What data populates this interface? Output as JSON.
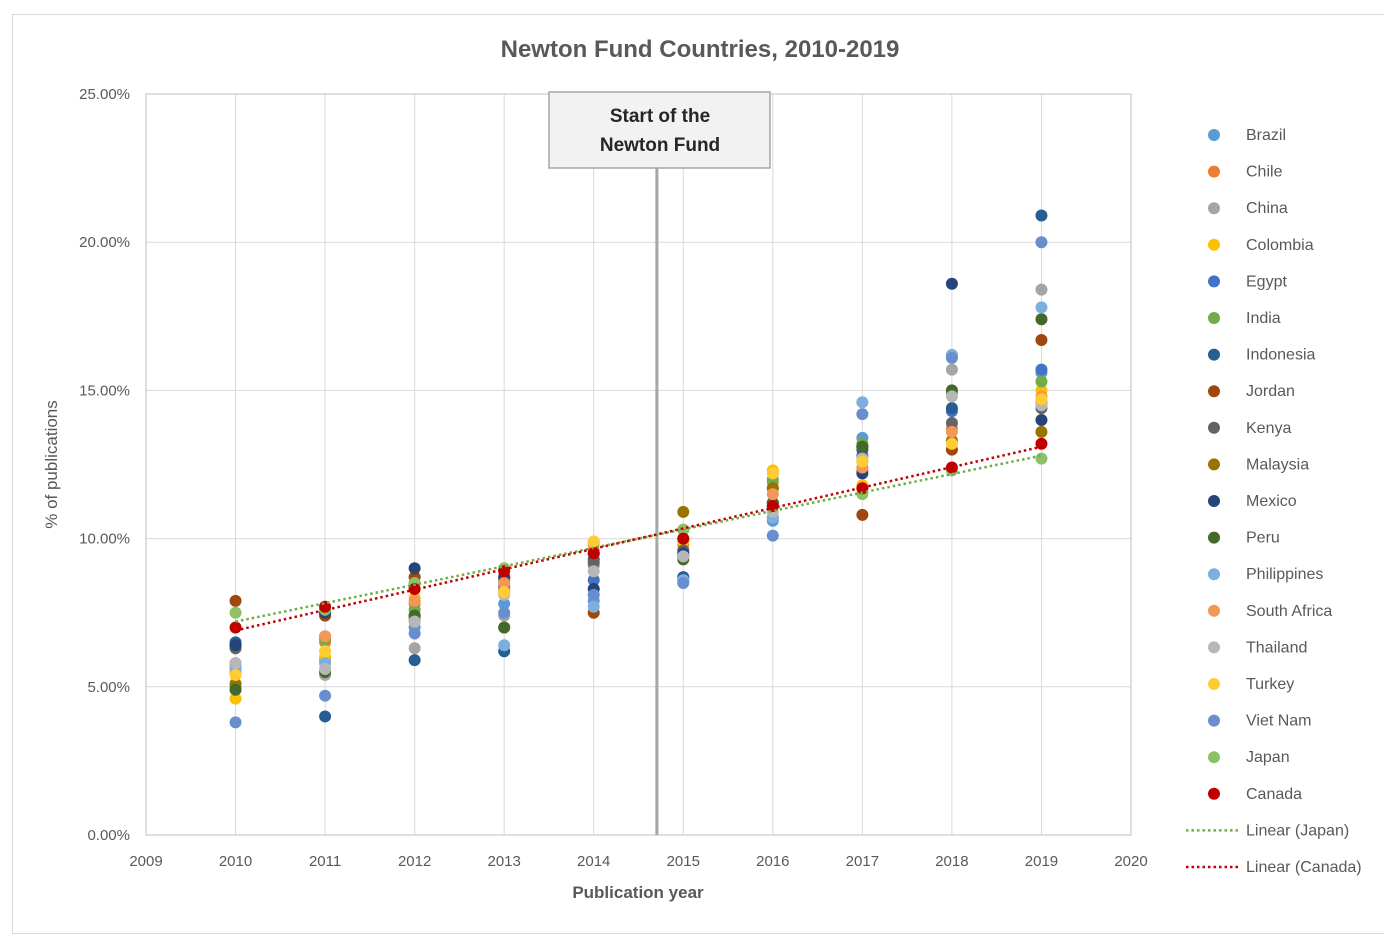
{
  "chart_data": {
    "type": "scatter",
    "title": "Newton Fund Countries, 2010-2019",
    "xlabel": "Publication year",
    "ylabel": "% of publications",
    "xlim": [
      2009,
      2020
    ],
    "ylim": [
      0,
      25
    ],
    "x_ticks": [
      "2009",
      "2010",
      "2011",
      "2012",
      "2013",
      "2014",
      "2015",
      "2016",
      "2017",
      "2018",
      "2019",
      "2020"
    ],
    "y_ticks": [
      "0.00%",
      "5.00%",
      "10.00%",
      "15.00%",
      "20.00%",
      "25.00%"
    ],
    "grid": "horizontal and vertical",
    "legend_position": "right",
    "annotation": {
      "text": [
        "Start of the",
        "Newton Fund"
      ],
      "x": 2014.75
    },
    "x": [
      2010,
      2011,
      2012,
      2013,
      2014,
      2015,
      2016,
      2017,
      2018,
      2019
    ],
    "series": [
      {
        "name": "Brazil",
        "color": "#5b9bd5",
        "values": [
          5.7,
          5.9,
          7.0,
          7.8,
          7.9,
          8.6,
          10.6,
          13.4,
          16.1,
          15.6
        ]
      },
      {
        "name": "Chile",
        "color": "#ed7d31",
        "values": [
          5.5,
          6.5,
          7.8,
          8.3,
          9.6,
          9.8,
          11.9,
          12.3,
          13.7,
          14.6
        ]
      },
      {
        "name": "China",
        "color": "#a5a5a5",
        "values": [
          5.0,
          5.4,
          6.3,
          7.4,
          8.1,
          9.5,
          11.1,
          12.6,
          15.7,
          18.4
        ]
      },
      {
        "name": "Colombia",
        "color": "#ffc000",
        "values": [
          4.6,
          6.0,
          8.0,
          8.5,
          9.9,
          9.9,
          12.3,
          11.8,
          13.3,
          15.0
        ]
      },
      {
        "name": "Egypt",
        "color": "#4472c4",
        "values": [
          6.4,
          7.5,
          8.5,
          8.4,
          8.6,
          9.4,
          11.1,
          12.8,
          14.3,
          15.7
        ]
      },
      {
        "name": "India",
        "color": "#70ad47",
        "values": [
          5.1,
          6.6,
          7.6,
          7.0,
          9.1,
          10.3,
          12.0,
          13.2,
          14.9,
          15.3
        ]
      },
      {
        "name": "Indonesia",
        "color": "#255e91",
        "values": [
          6.5,
          4.0,
          5.9,
          6.2,
          9.3,
          8.7,
          10.7,
          13.0,
          14.4,
          20.9
        ]
      },
      {
        "name": "Jordan",
        "color": "#9e480e",
        "values": [
          7.9,
          7.4,
          8.7,
          8.7,
          7.5,
          9.4,
          11.2,
          10.8,
          13.0,
          16.7
        ]
      },
      {
        "name": "Kenya",
        "color": "#636363",
        "values": [
          6.3,
          7.6,
          7.4,
          8.2,
          9.2,
          9.6,
          11.7,
          13.1,
          13.9,
          14.4
        ]
      },
      {
        "name": "Malaysia",
        "color": "#997300",
        "values": [
          5.1,
          6.7,
          7.3,
          8.6,
          9.5,
          10.9,
          11.7,
          13.1,
          13.3,
          13.6
        ]
      },
      {
        "name": "Mexico",
        "color": "#264478",
        "values": [
          6.4,
          7.5,
          9.0,
          8.7,
          8.3,
          9.5,
          11.2,
          12.2,
          18.6,
          14.0
        ]
      },
      {
        "name": "Peru",
        "color": "#43682b",
        "values": [
          4.9,
          5.5,
          7.4,
          7.0,
          9.5,
          9.3,
          11.2,
          13.1,
          15.0,
          17.4
        ]
      },
      {
        "name": "Philippines",
        "color": "#7cafdd",
        "values": [
          5.6,
          5.8,
          7.2,
          6.4,
          7.7,
          8.6,
          10.7,
          14.6,
          16.2,
          17.8
        ]
      },
      {
        "name": "South Africa",
        "color": "#f1975a",
        "values": [
          5.8,
          6.7,
          7.9,
          8.5,
          9.8,
          10.0,
          11.5,
          12.4,
          13.6,
          14.8
        ]
      },
      {
        "name": "Thailand",
        "color": "#b7b7b7",
        "values": [
          5.8,
          5.6,
          7.2,
          8.1,
          8.9,
          9.4,
          10.9,
          12.7,
          14.8,
          14.5
        ]
      },
      {
        "name": "Turkey",
        "color": "#ffcd33",
        "values": [
          5.4,
          6.2,
          8.3,
          8.2,
          9.9,
          10.0,
          12.2,
          12.6,
          13.2,
          14.7
        ]
      },
      {
        "name": "Viet Nam",
        "color": "#698ed0",
        "values": [
          3.8,
          4.7,
          6.8,
          7.5,
          8.1,
          8.5,
          10.1,
          14.2,
          16.1,
          20.0
        ]
      },
      {
        "name": "Japan",
        "color": "#8cc168",
        "values": [
          7.5,
          7.6,
          8.5,
          9.0,
          9.5,
          10.3,
          11.1,
          11.5,
          12.3,
          12.7
        ]
      },
      {
        "name": "Canada",
        "color": "#c00000",
        "values": [
          7.0,
          7.7,
          8.3,
          8.9,
          9.5,
          10.0,
          11.1,
          11.7,
          12.4,
          13.2
        ]
      }
    ],
    "trendlines": [
      {
        "name": "Linear (Japan)",
        "color": "#70ad47",
        "from": [
          2010,
          7.2
        ],
        "to": [
          2019,
          12.8
        ]
      },
      {
        "name": "Linear (Canada)",
        "color": "#c00000",
        "from": [
          2010,
          6.9
        ],
        "to": [
          2019,
          13.1
        ]
      }
    ]
  }
}
